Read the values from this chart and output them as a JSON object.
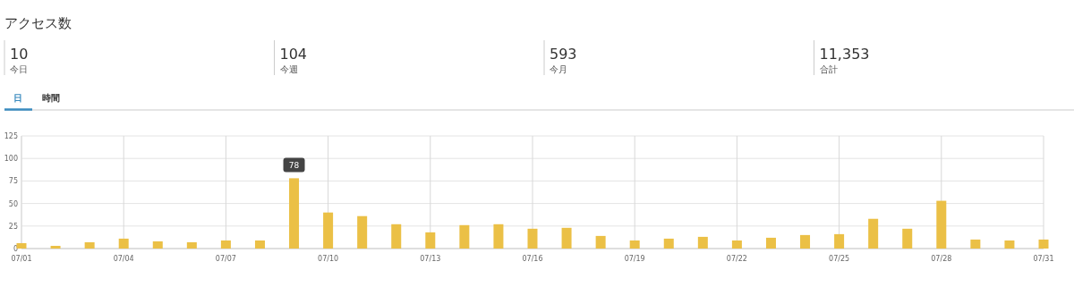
{
  "chart_data": [
    {
      "type": "other",
      "title": "アクセス数",
      "annotations": [
        "10",
        "今日",
        "104",
        "今週",
        "593",
        "今月",
        "11,353",
        "合計"
      ]
    },
    {
      "type": "bar",
      "annotations": [
        "日",
        "時間"
      ],
      "categories": [
        "07/01",
        null,
        null,
        "07/04",
        null,
        null,
        "07/07",
        null,
        null,
        "07/10",
        null,
        null,
        "07/13",
        null,
        null,
        "07/16",
        null,
        null,
        "07/19",
        null,
        null,
        "07/22",
        null,
        null,
        "07/25",
        null,
        null,
        "07/28",
        null,
        null,
        "07/31"
      ],
      "values": [
        6,
        3,
        7,
        11,
        8,
        7,
        9,
        9,
        78,
        40,
        36,
        27,
        18,
        26,
        27,
        22,
        23,
        14,
        9,
        11,
        13,
        9,
        12,
        15,
        16,
        33,
        22,
        53,
        10,
        9,
        10
      ],
      "value_labels": [
        null,
        null,
        null,
        null,
        null,
        null,
        null,
        null,
        "78",
        null,
        null,
        null,
        null,
        null,
        null,
        null,
        null,
        null,
        null,
        null,
        null,
        null,
        null,
        null,
        null,
        null,
        null,
        null,
        null,
        null,
        null
      ],
      "color": "#ebc046",
      "ylim": [
        0,
        125
      ],
      "yticks": [
        0,
        25,
        50,
        75,
        100,
        125
      ],
      "grid": true
    }
  ]
}
